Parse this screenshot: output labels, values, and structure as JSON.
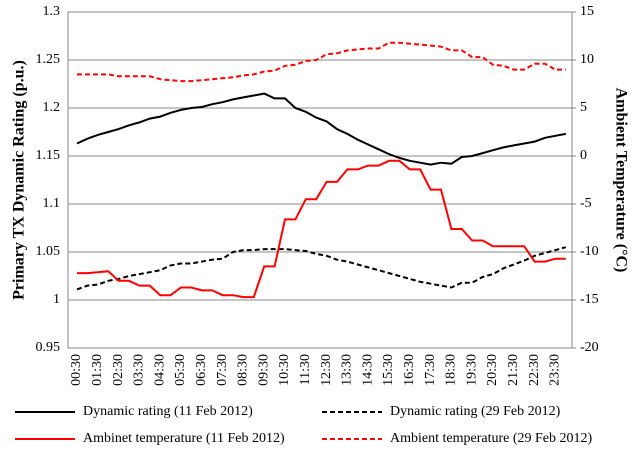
{
  "chart_data": {
    "type": "line",
    "y_label": "Primary TX Dynamic Rating (p.u.)",
    "y2_label": "Ambient Temperature (°C)",
    "categories": [
      "00:30",
      null,
      "01:30",
      null,
      "02:30",
      null,
      "03:30",
      null,
      "04:30",
      null,
      "05:30",
      null,
      "06:30",
      null,
      "07:30",
      null,
      "08:30",
      null,
      "09:30",
      null,
      "10:30",
      null,
      "11:30",
      null,
      "12:30",
      null,
      "13:30",
      null,
      "14:30",
      null,
      "15:30",
      null,
      "16:30",
      null,
      "17:30",
      null,
      "18:30",
      null,
      "19:30",
      null,
      "20:30",
      null,
      "21:30",
      null,
      "22:30",
      null,
      "23:30",
      null
    ],
    "ylim": [
      0.95,
      1.3
    ],
    "yticks": [
      0.95,
      1,
      1.05,
      1.1,
      1.15,
      1.2,
      1.25,
      1.3
    ],
    "y2lim": [
      -20,
      15
    ],
    "y2ticks": [
      -20,
      -15,
      -10,
      -5,
      0,
      5,
      10,
      15
    ],
    "grid": true,
    "series": [
      {
        "name": "Dynamic rating (11 Feb 2012)",
        "color": "#000000",
        "dash": false,
        "values": [
          1.163,
          1.168,
          1.172,
          1.175,
          1.178,
          1.182,
          1.185,
          1.189,
          1.191,
          1.195,
          1.198,
          1.2,
          1.201,
          1.204,
          1.206,
          1.209,
          1.211,
          1.213,
          1.215,
          1.21,
          1.21,
          1.2,
          1.196,
          1.19,
          1.186,
          1.178,
          1.173,
          1.167,
          1.162,
          1.157,
          1.152,
          1.148,
          1.145,
          1.143,
          1.141,
          1.143,
          1.142,
          1.149,
          1.15,
          1.153,
          1.156,
          1.159,
          1.161,
          1.163,
          1.165,
          1.169,
          1.171,
          1.173
        ]
      },
      {
        "name": "Dynamic rating (29 Feb 2012)",
        "color": "#000000",
        "dash": true,
        "values": [
          1.011,
          1.015,
          1.016,
          1.02,
          1.022,
          1.025,
          1.027,
          1.029,
          1.031,
          1.036,
          1.038,
          1.038,
          1.04,
          1.042,
          1.043,
          1.05,
          1.052,
          1.052,
          1.053,
          1.053,
          1.053,
          1.052,
          1.051,
          1.048,
          1.046,
          1.042,
          1.04,
          1.037,
          1.034,
          1.031,
          1.028,
          1.025,
          1.022,
          1.019,
          1.017,
          1.015,
          1.013,
          1.018,
          1.018,
          1.024,
          1.027,
          1.033,
          1.037,
          1.041,
          1.046,
          1.049,
          1.052,
          1.055
        ]
      },
      {
        "name": "Ambinet temperature (11 Feb 2012)",
        "color": "#ff0000",
        "dash": false,
        "axis": "y2",
        "values": [
          -12.2,
          -12.2,
          -12.1,
          -12.0,
          -13,
          -13,
          -13.5,
          -13.5,
          -14.5,
          -14.5,
          -13.7,
          -13.7,
          -14,
          -14,
          -14.5,
          -14.5,
          -14.7,
          -14.7,
          -11.5,
          -11.5,
          -6.6,
          -6.6,
          -4.5,
          -4.5,
          -2.7,
          -2.7,
          -1.4,
          -1.4,
          -1.0,
          -1.0,
          -0.5,
          -0.5,
          -1.4,
          -1.4,
          -3.5,
          -3.5,
          -7.6,
          -7.6,
          -8.8,
          -8.8,
          -9.4,
          -9.4,
          -9.4,
          -9.4,
          -11,
          -11,
          -10.7,
          -10.7
        ]
      },
      {
        "name": "Ambient temperature (29 Feb 2012)",
        "color": "#ff0000",
        "dash": true,
        "axis": "y2",
        "values": [
          8.5,
          8.5,
          8.5,
          8.5,
          8.3,
          8.3,
          8.3,
          8.3,
          8.0,
          7.9,
          7.8,
          7.8,
          7.9,
          8.0,
          8.1,
          8.2,
          8.4,
          8.5,
          8.8,
          8.9,
          9.4,
          9.5,
          9.9,
          10.0,
          10.6,
          10.7,
          11.0,
          11.1,
          11.2,
          11.2,
          11.8,
          11.8,
          11.7,
          11.6,
          11.5,
          11.4,
          11.0,
          11.0,
          10.3,
          10.3,
          9.5,
          9.4,
          9.0,
          9.0,
          9.6,
          9.6,
          9.0,
          9.0
        ]
      }
    ]
  }
}
